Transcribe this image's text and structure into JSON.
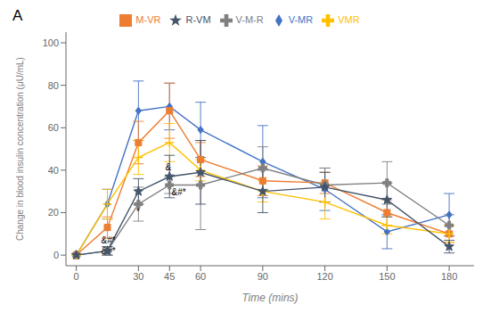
{
  "chart_data": {
    "type": "line",
    "title": "A",
    "x": [
      0,
      15,
      30,
      45,
      60,
      90,
      120,
      150,
      180
    ],
    "series": [
      {
        "name": "V-MR",
        "color": "#4472C4",
        "marker": "diamond",
        "values": [
          0,
          24,
          68,
          70,
          59,
          44,
          31,
          11,
          19
        ],
        "yerr": [
          0,
          7,
          14,
          11,
          13,
          17,
          10,
          8,
          10
        ]
      },
      {
        "name": "M-VR",
        "color": "#ED7D31",
        "marker": "square",
        "values": [
          0,
          13,
          53,
          68,
          45,
          35,
          34,
          20,
          10
        ],
        "yerr": [
          0,
          5,
          10,
          13,
          8,
          7,
          5,
          6,
          4
        ]
      },
      {
        "name": "V-M-R",
        "color": "#808080",
        "marker": "plus_filled",
        "values": [
          0,
          2,
          24,
          33,
          33,
          41,
          33,
          34,
          14
        ],
        "yerr": [
          0,
          2,
          8,
          4,
          21,
          10,
          8,
          10,
          5
        ]
      },
      {
        "name": "VMR",
        "color": "#FFC000",
        "marker": "plus",
        "values": [
          0,
          24,
          46,
          53,
          40,
          30,
          25,
          14,
          10
        ],
        "yerr": [
          0,
          7,
          8,
          9,
          5,
          5,
          8,
          4,
          4
        ]
      },
      {
        "name": "R-VM",
        "color": "#44546A",
        "marker": "star",
        "values": [
          0,
          2,
          30,
          37,
          39,
          30,
          32,
          26,
          4
        ],
        "yerr": [
          0,
          2,
          6,
          10,
          15,
          10,
          7,
          8,
          3
        ]
      }
    ],
    "annotations": [
      {
        "x": 12,
        "y": 5.5,
        "text": "&#*"
      },
      {
        "x": 12,
        "y": 0.5,
        "text": "&#*"
      },
      {
        "x": 29,
        "y": 19,
        "text": "*"
      },
      {
        "x": 43,
        "y": 40,
        "text": "&"
      },
      {
        "x": 46,
        "y": 28,
        "text": "&#*"
      }
    ],
    "xlim": [
      -5,
      192
    ],
    "ylim": [
      -5,
      105
    ],
    "xticks": [
      0,
      30,
      45,
      60,
      90,
      120,
      150,
      180
    ],
    "yticks": [
      0,
      20,
      40,
      60,
      80,
      100
    ],
    "xlabel": "Time (mins)",
    "ylabel": "Change in blood insulin concentration (μU/mL)",
    "grid": false,
    "legend": "top"
  }
}
